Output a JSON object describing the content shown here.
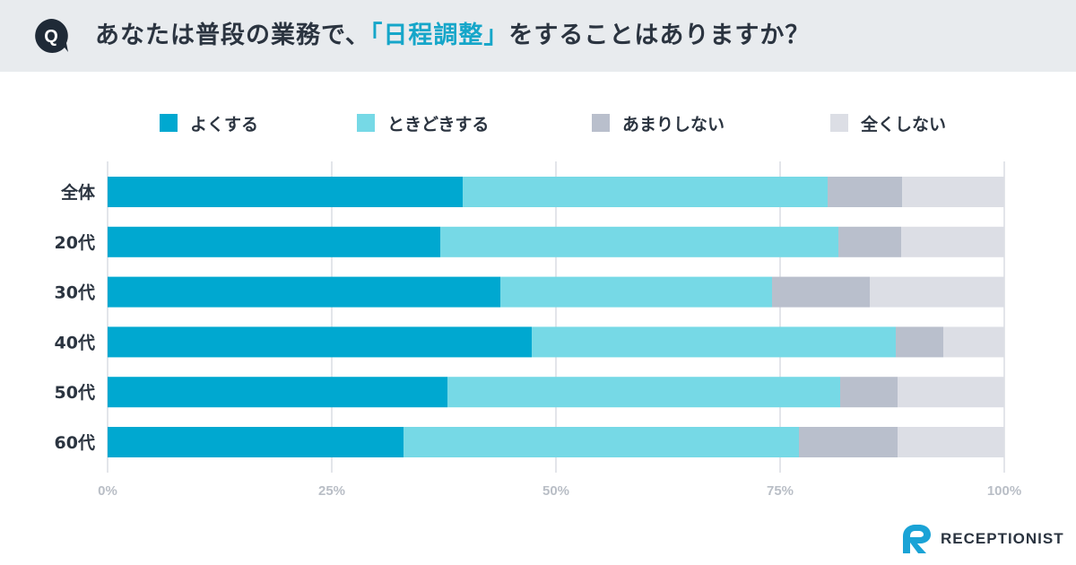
{
  "question": {
    "badge": "Q",
    "prefix": "あなたは普段の業務で、",
    "highlight": "「日程調整」",
    "suffix": "をすることはありますか？"
  },
  "brand": {
    "name": "RECEPTIONIST",
    "logo_icon": "receptionist-r-logo-icon"
  },
  "colors": {
    "header_bg": "#e8ebee",
    "badge_bg": "#1f2a37",
    "accent": "#16a6c9",
    "often": "#00a8d0",
    "sometimes": "#76d9e6",
    "rarely": "#b9bfcc",
    "never": "#dcdee5",
    "grid": "#e3e5ea",
    "tick": "#b9bec6"
  },
  "chart_data": {
    "type": "bar",
    "orientation": "horizontal",
    "stacked": true,
    "categories": [
      "全体",
      "20代",
      "30代",
      "40代",
      "50代",
      "60代"
    ],
    "series": [
      {
        "name": "よくする",
        "color": "#00a8d0",
        "values": [
          39.6,
          37.1,
          43.8,
          47.3,
          37.9,
          33.0
        ]
      },
      {
        "name": "ときどきする",
        "color": "#76d9e6",
        "values": [
          40.7,
          44.4,
          30.3,
          40.6,
          43.8,
          44.1
        ]
      },
      {
        "name": "あまりしない",
        "color": "#b9bfcc",
        "values": [
          8.3,
          7.0,
          10.9,
          5.3,
          6.4,
          11.0
        ]
      },
      {
        "name": "全くしない",
        "color": "#dcdee5",
        "values": [
          11.4,
          11.5,
          15.0,
          6.8,
          11.9,
          11.9
        ]
      }
    ],
    "xlim": [
      0,
      100
    ],
    "x_ticks": [
      0,
      25,
      50,
      75,
      100
    ],
    "x_tick_labels": [
      "0%",
      "25%",
      "50%",
      "75%",
      "100%"
    ],
    "grid": true,
    "legend_position": "top"
  }
}
